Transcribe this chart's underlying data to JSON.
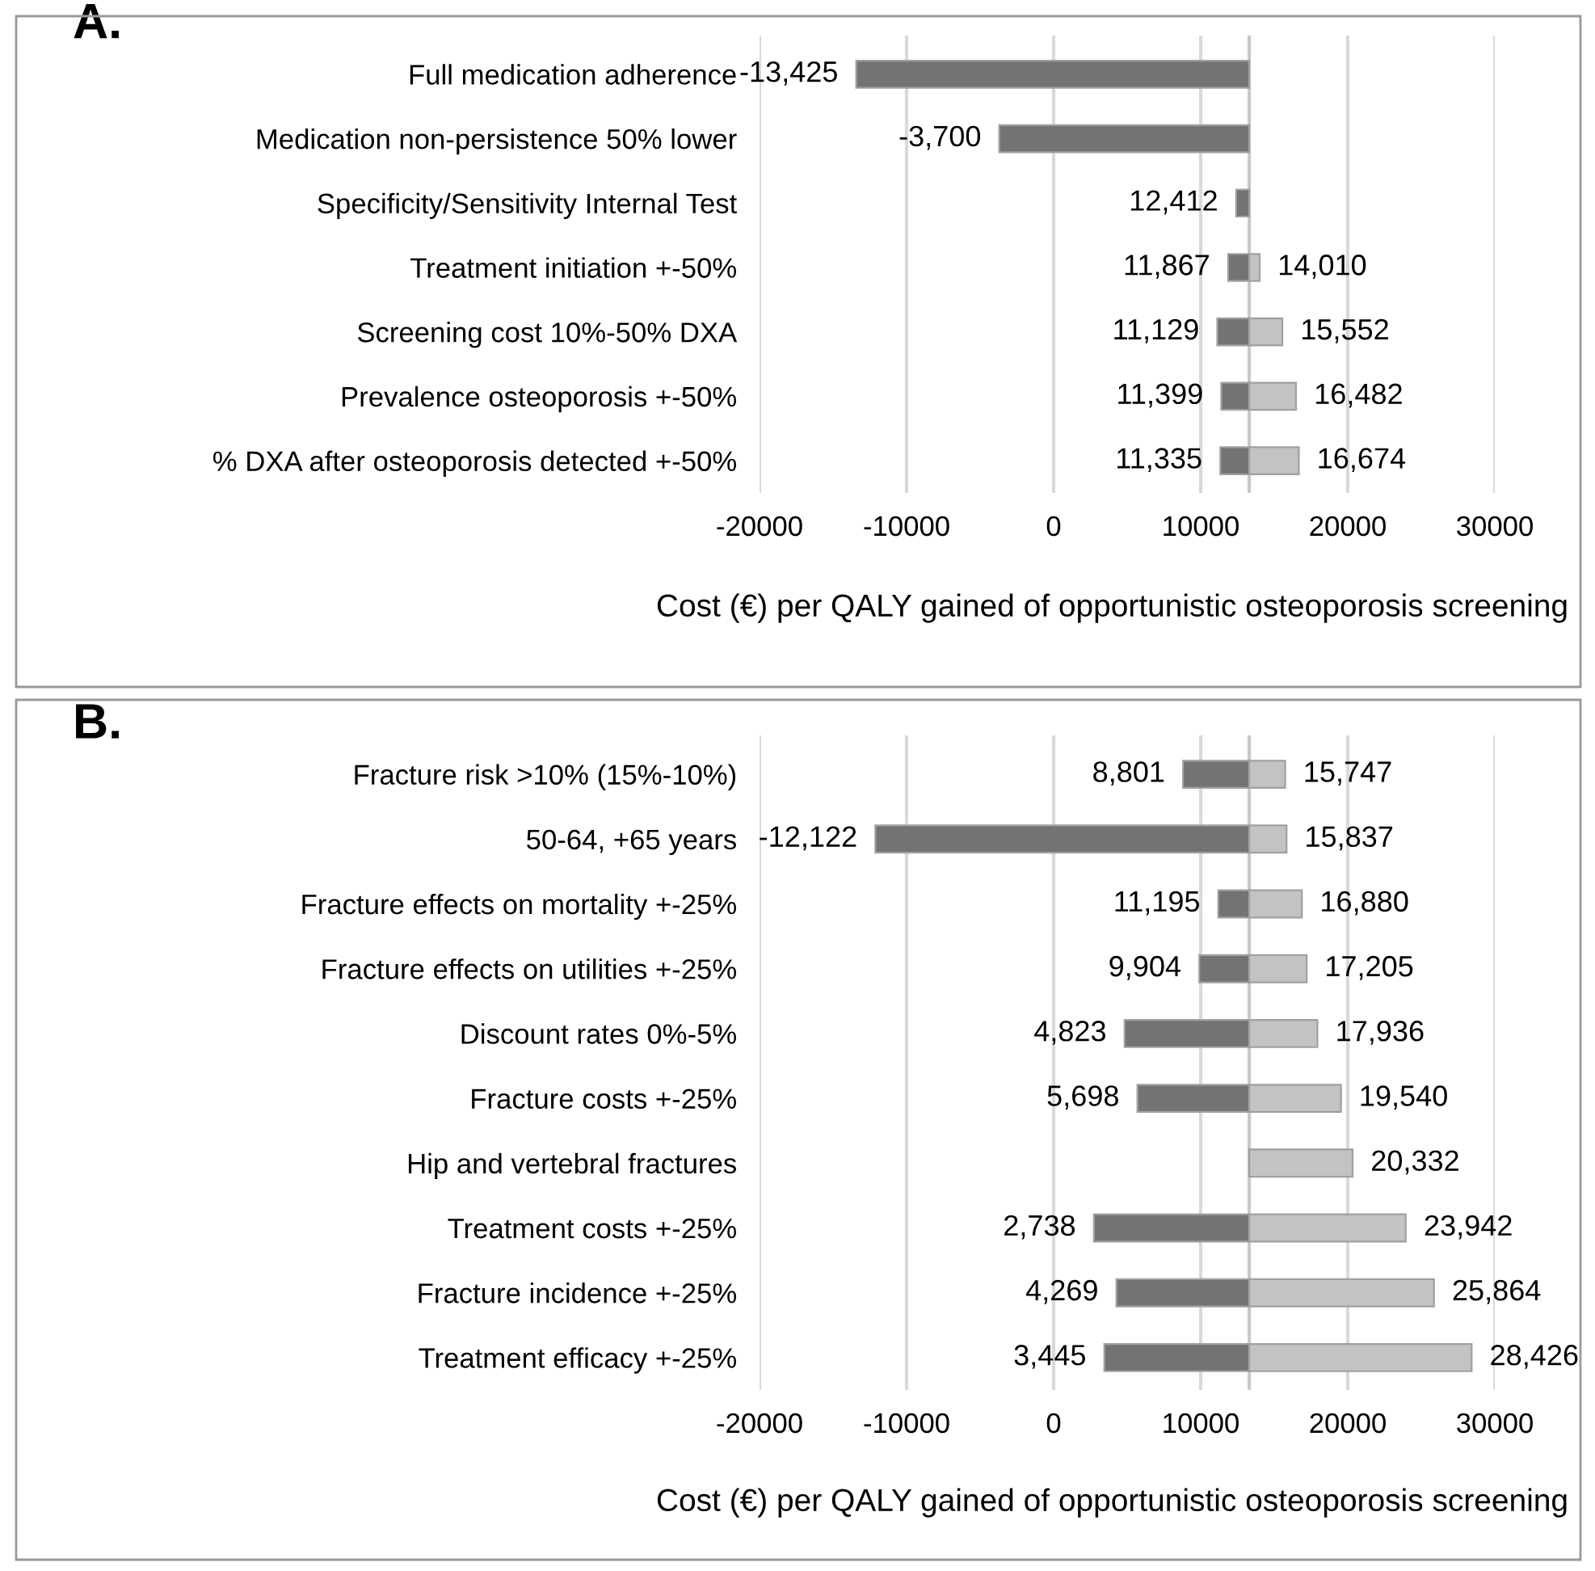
{
  "chart_data": [
    {
      "type": "bar",
      "orientation": "horizontal",
      "title": "A.",
      "xlabel": "Cost (€) per QALY gained of opportunistic osteoporosis screening",
      "categories": [
        "Full medication adherence",
        "Medication non-persistence 50% lower",
        "Specificity/Sensitivity Internal Test",
        "Treatment initiation +-50%",
        "Screening cost 10%-50% DXA",
        "Prevalence osteoporosis +-50%",
        "% DXA after osteoporosis detected +-50%"
      ],
      "series": [
        {
          "color": "#737373",
          "base": [
            13300,
            13300,
            13300,
            13300,
            13300,
            13300,
            13300
          ],
          "values": [
            -26725,
            -17000,
            -888,
            -1433,
            -2171,
            -1901,
            -1965
          ],
          "value_labels": [
            "-13,425",
            "-3,700",
            "12,412",
            "11,867",
            "11,129",
            "11,399",
            "11,335"
          ]
        },
        {
          "color": "#c3c3c3",
          "base": [
            null,
            null,
            null,
            13300,
            13300,
            13300,
            13300
          ],
          "values": [
            null,
            null,
            null,
            710,
            2252,
            3182,
            3374
          ],
          "value_labels": [
            null,
            null,
            null,
            "14,010",
            "15,552",
            "16,482",
            "16,674"
          ]
        }
      ],
      "ref_lines": [
        {
          "axis": "x",
          "value": 13300,
          "color": "#c8c8c8"
        }
      ],
      "xlim": [
        -20000,
        30000
      ],
      "xticks": [
        -20000,
        -10000,
        0,
        10000,
        20000,
        30000
      ],
      "grid": "x",
      "legend": false
    },
    {
      "type": "bar",
      "orientation": "horizontal",
      "title": "B.",
      "xlabel": "Cost (€) per QALY gained of opportunistic osteoporosis screening",
      "categories": [
        "Fracture risk >10% (15%-10%)",
        "50-64, +65 years",
        "Fracture effects on mortality +-25%",
        "Fracture effects on utilities +-25%",
        "Discount rates 0%-5%",
        "Fracture costs +-25%",
        "Hip and vertebral fractures",
        "Treatment costs +-25%",
        "Fracture incidence +-25%",
        "Treatment efficacy +-25%"
      ],
      "series": [
        {
          "color": "#737373",
          "base": [
            13300,
            13300,
            13300,
            13300,
            13300,
            13300,
            null,
            13300,
            13300,
            13300
          ],
          "values": [
            -4499,
            -25422,
            -2105,
            -3396,
            -8477,
            -7602,
            null,
            -10562,
            -9031,
            -9855
          ],
          "value_labels": [
            "8,801",
            "-12,122",
            "11,195",
            "9,904",
            "4,823",
            "5,698",
            null,
            "2,738",
            "4,269",
            "3,445"
          ]
        },
        {
          "color": "#c3c3c3",
          "base": [
            13300,
            13300,
            13300,
            13300,
            13300,
            13300,
            13300,
            13300,
            13300,
            13300
          ],
          "values": [
            2447,
            2537,
            3580,
            3905,
            4636,
            6240,
            7032,
            10642,
            12564,
            15126
          ],
          "value_labels": [
            "15,747",
            "15,837",
            "16,880",
            "17,205",
            "17,936",
            "19,540",
            "20,332",
            "23,942",
            "25,864",
            "28,426"
          ]
        }
      ],
      "ref_lines": [
        {
          "axis": "x",
          "value": 13300,
          "color": "#c8c8c8"
        }
      ],
      "xlim": [
        -20000,
        30000
      ],
      "xticks": [
        -20000,
        -10000,
        0,
        10000,
        20000,
        30000
      ],
      "grid": "x",
      "legend": false
    }
  ]
}
